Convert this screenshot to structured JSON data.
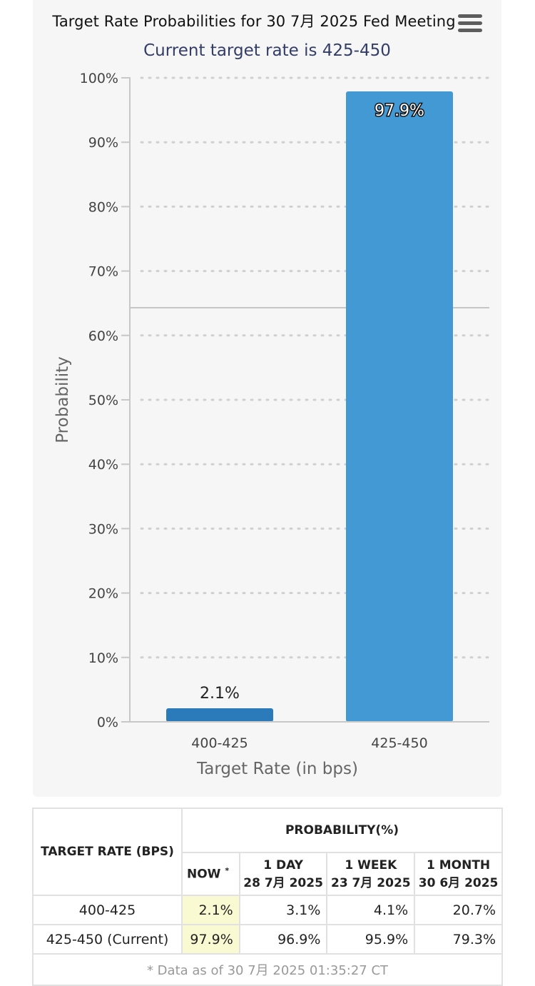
{
  "chart_data": {
    "type": "bar",
    "title": "Target Rate Probabilities for 30 7月 2025 Fed Meeting",
    "subtitle": "Current target rate is 425-450",
    "xlabel": "Target Rate (in bps)",
    "ylabel": "Probability",
    "categories": [
      "400-425",
      "425-450"
    ],
    "values": [
      2.1,
      97.9
    ],
    "value_labels": [
      "2.1%",
      "97.9%"
    ],
    "ylim": [
      0,
      100
    ],
    "yticks": [
      "0%",
      "10%",
      "20%",
      "30%",
      "40%",
      "50%",
      "60%",
      "70%",
      "80%",
      "90%",
      "100%"
    ],
    "grid": "dotted horizontal",
    "colors": {
      "bar_low": "#2b7bba",
      "bar_high": "#4399d3",
      "subtitle": "#333d66",
      "highlight_cell": "#fafad2"
    },
    "menu_icon": "hamburger-icon"
  },
  "table": {
    "header": {
      "target_rate": "TARGET RATE (BPS)",
      "probability": "PROBABILITY(%)",
      "now": "NOW",
      "now_mark": "*",
      "day_label": "1 DAY",
      "day_date": "28 7月 2025",
      "week_label": "1 WEEK",
      "week_date": "23 7月 2025",
      "month_label": "1 MONTH",
      "month_date": "30 6月 2025"
    },
    "rows": [
      {
        "rate": "400-425",
        "now": "2.1%",
        "day": "3.1%",
        "week": "4.1%",
        "month": "20.7%"
      },
      {
        "rate": "425-450 (Current)",
        "now": "97.9%",
        "day": "96.9%",
        "week": "95.9%",
        "month": "79.3%"
      }
    ],
    "footnote": "* Data as of 30 7月 2025 01:35:27 CT"
  }
}
